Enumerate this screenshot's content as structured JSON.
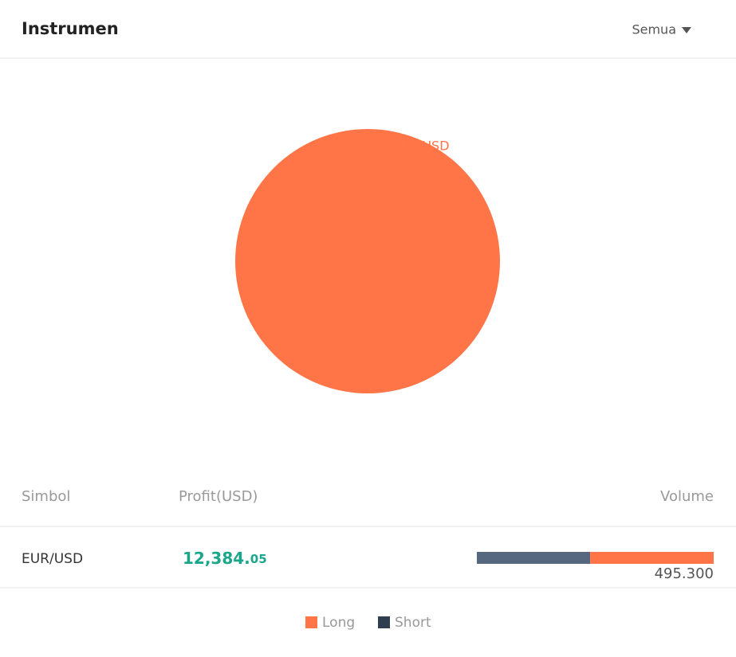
{
  "header": {
    "title": "Instrumen",
    "filter": "Semua"
  },
  "chart_data": {
    "type": "pie",
    "categories": [
      "EUR/USD"
    ],
    "values": [
      100
    ],
    "colors": [
      "#ff7547"
    ]
  },
  "table": {
    "columns": [
      "Simbol",
      "Profit(USD)",
      "Volume"
    ],
    "rows": [
      {
        "symbol": "EUR/USD",
        "profit_integer": "12,384.",
        "profit_decimal": "05",
        "volume": "495.300",
        "short": 237,
        "long": 258.3
      }
    ]
  },
  "legend": [
    {
      "name": "Long",
      "color": "#ff7547",
      "bar_color": "#ff7547"
    },
    {
      "name": "Short",
      "color": "#2f3e4e",
      "bar_color": "#566880"
    }
  ]
}
